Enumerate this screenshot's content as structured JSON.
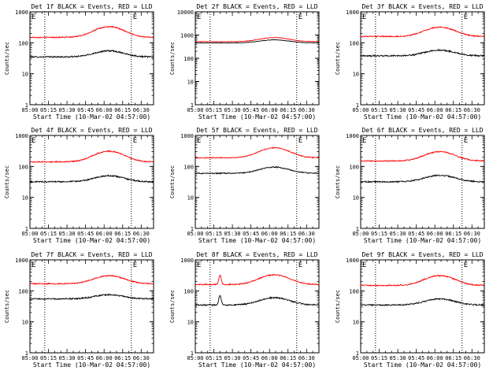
{
  "figure": {
    "background": "#ffffff",
    "axis_color": "#000000",
    "events_color": "#000000",
    "lld_color": "#ff0000"
  },
  "chart_data": [
    {
      "type": "line",
      "title": "Det 1f BLACK = Events, RED = LLD",
      "ylabel": "Counts/sec",
      "xlabel": "Start Time (10-Mar-02 04:57:00)",
      "yscale": "log",
      "ylim": [
        1,
        1000
      ],
      "y_tick_labels": [
        "1",
        "10",
        "100",
        "1000"
      ],
      "x_tick_labels": [
        "05:00",
        "05:15",
        "05:30",
        "05:45",
        "06:00",
        "06:15",
        "06:30"
      ],
      "xlim_minutes": [
        0,
        100
      ],
      "vlines_minutes": [
        12,
        82
      ],
      "markers": [
        {
          "text": "E",
          "x_minutes": 0
        },
        {
          "text": "E",
          "x_minutes": 82
        }
      ],
      "series": [
        {
          "name": "Events",
          "color": "#000000",
          "base": 35,
          "peak": 55,
          "peak_at_minutes": 64,
          "peak_width_minutes": 11,
          "noise": 0.05
        },
        {
          "name": "LLD",
          "color": "#ff0000",
          "base": 150,
          "peak": 330,
          "peak_at_minutes": 64,
          "peak_width_minutes": 11,
          "noise": 0.04
        }
      ]
    },
    {
      "type": "line",
      "title": "Det 2f BLACK = Events, RED = LLD",
      "ylabel": "Counts/sec",
      "xlabel": "Start Time (10-Mar-02 04:57:00)",
      "yscale": "log",
      "ylim": [
        1,
        10000
      ],
      "y_tick_labels": [
        "1",
        "10",
        "100",
        "1000",
        "10000"
      ],
      "x_tick_labels": [
        "05:00",
        "05:15",
        "05:30",
        "05:45",
        "06:00",
        "06:15",
        "06:30"
      ],
      "xlim_minutes": [
        0,
        100
      ],
      "vlines_minutes": [
        12,
        82
      ],
      "markers": [
        {
          "text": "E",
          "x_minutes": 0
        },
        {
          "text": "E",
          "x_minutes": 82
        }
      ],
      "series": [
        {
          "name": "Events",
          "color": "#000000",
          "base": 460,
          "peak": 620,
          "peak_at_minutes": 64,
          "peak_width_minutes": 11,
          "noise": 0.02
        },
        {
          "name": "LLD",
          "color": "#ff0000",
          "base": 520,
          "peak": 780,
          "peak_at_minutes": 64,
          "peak_width_minutes": 11,
          "noise": 0.02
        }
      ]
    },
    {
      "type": "line",
      "title": "Det 3f BLACK = Events, RED = LLD",
      "ylabel": "Counts/sec",
      "xlabel": "Start Time (10-Mar-02 04:57:00)",
      "yscale": "log",
      "ylim": [
        1,
        1000
      ],
      "y_tick_labels": [
        "1",
        "10",
        "100",
        "1000"
      ],
      "x_tick_labels": [
        "05:00",
        "05:15",
        "05:30",
        "05:45",
        "06:00",
        "06:15",
        "06:30"
      ],
      "xlim_minutes": [
        0,
        100
      ],
      "vlines_minutes": [
        12,
        82
      ],
      "markers": [
        {
          "text": "E",
          "x_minutes": 0
        },
        {
          "text": "E",
          "x_minutes": 82
        }
      ],
      "series": [
        {
          "name": "Events",
          "color": "#000000",
          "base": 38,
          "peak": 58,
          "peak_at_minutes": 64,
          "peak_width_minutes": 11,
          "noise": 0.05
        },
        {
          "name": "LLD",
          "color": "#ff0000",
          "base": 160,
          "peak": 320,
          "peak_at_minutes": 64,
          "peak_width_minutes": 11,
          "noise": 0.04
        }
      ]
    },
    {
      "type": "line",
      "title": "Det 4f BLACK = Events, RED = LLD",
      "ylabel": "Counts/sec",
      "xlabel": "Start Time (10-Mar-02 04:57:00)",
      "yscale": "log",
      "ylim": [
        1,
        1000
      ],
      "y_tick_labels": [
        "1",
        "10",
        "100",
        "1000"
      ],
      "x_tick_labels": [
        "05:00",
        "05:15",
        "05:30",
        "05:45",
        "06:00",
        "06:15",
        "06:30"
      ],
      "xlim_minutes": [
        0,
        100
      ],
      "vlines_minutes": [
        12,
        82
      ],
      "markers": [
        {
          "text": "E",
          "x_minutes": 0
        },
        {
          "text": "E",
          "x_minutes": 82
        }
      ],
      "series": [
        {
          "name": "Events",
          "color": "#000000",
          "base": 32,
          "peak": 50,
          "peak_at_minutes": 64,
          "peak_width_minutes": 11,
          "noise": 0.05
        },
        {
          "name": "LLD",
          "color": "#ff0000",
          "base": 140,
          "peak": 310,
          "peak_at_minutes": 64,
          "peak_width_minutes": 11,
          "noise": 0.04
        }
      ]
    },
    {
      "type": "line",
      "title": "Det 5f BLACK = Events, RED = LLD",
      "ylabel": "Counts/sec",
      "xlabel": "Start Time (10-Mar-02 04:57:00)",
      "yscale": "log",
      "ylim": [
        1,
        1000
      ],
      "y_tick_labels": [
        "1",
        "10",
        "100",
        "1000"
      ],
      "x_tick_labels": [
        "05:00",
        "05:15",
        "05:30",
        "05:45",
        "06:00",
        "06:15",
        "06:30"
      ],
      "xlim_minutes": [
        0,
        100
      ],
      "vlines_minutes": [
        12,
        82
      ],
      "markers": [
        {
          "text": "E",
          "x_minutes": 0
        },
        {
          "text": "E",
          "x_minutes": 82
        }
      ],
      "series": [
        {
          "name": "Events",
          "color": "#000000",
          "base": 60,
          "peak": 95,
          "peak_at_minutes": 64,
          "peak_width_minutes": 11,
          "noise": 0.04
        },
        {
          "name": "LLD",
          "color": "#ff0000",
          "base": 190,
          "peak": 400,
          "peak_at_minutes": 64,
          "peak_width_minutes": 11,
          "noise": 0.03
        }
      ]
    },
    {
      "type": "line",
      "title": "Det 6f BLACK = Events, RED = LLD",
      "ylabel": "Counts/sec",
      "xlabel": "Start Time (10-Mar-02 04:57:00)",
      "yscale": "log",
      "ylim": [
        1,
        1000
      ],
      "y_tick_labels": [
        "1",
        "10",
        "100",
        "1000"
      ],
      "x_tick_labels": [
        "05:00",
        "05:15",
        "05:30",
        "05:45",
        "06:00",
        "06:15",
        "06:30"
      ],
      "xlim_minutes": [
        0,
        100
      ],
      "vlines_minutes": [
        12,
        82
      ],
      "markers": [
        {
          "text": "E",
          "x_minutes": 0
        },
        {
          "text": "E",
          "x_minutes": 82
        }
      ],
      "series": [
        {
          "name": "Events",
          "color": "#000000",
          "base": 32,
          "peak": 52,
          "peak_at_minutes": 64,
          "peak_width_minutes": 11,
          "noise": 0.05
        },
        {
          "name": "LLD",
          "color": "#ff0000",
          "base": 150,
          "peak": 300,
          "peak_at_minutes": 64,
          "peak_width_minutes": 11,
          "noise": 0.04
        }
      ]
    },
    {
      "type": "line",
      "title": "Det 7f BLACK = Events, RED = LLD",
      "ylabel": "Counts/sec",
      "xlabel": "Start Time (10-Mar-02 04:57:00)",
      "yscale": "log",
      "ylim": [
        1,
        1000
      ],
      "y_tick_labels": [
        "1",
        "10",
        "100",
        "1000"
      ],
      "x_tick_labels": [
        "05:00",
        "05:15",
        "05:30",
        "05:45",
        "06:00",
        "06:15",
        "06:30"
      ],
      "xlim_minutes": [
        0,
        100
      ],
      "vlines_minutes": [
        12,
        82
      ],
      "markers": [
        {
          "text": "E",
          "x_minutes": 0
        },
        {
          "text": "E",
          "x_minutes": 82
        }
      ],
      "series": [
        {
          "name": "Events",
          "color": "#000000",
          "base": 55,
          "peak": 75,
          "peak_at_minutes": 64,
          "peak_width_minutes": 11,
          "noise": 0.05
        },
        {
          "name": "LLD",
          "color": "#ff0000",
          "base": 170,
          "peak": 310,
          "peak_at_minutes": 64,
          "peak_width_minutes": 11,
          "noise": 0.04
        }
      ]
    },
    {
      "type": "line",
      "title": "Det 8f BLACK = Events, RED = LLD",
      "ylabel": "Counts/sec",
      "xlabel": "Start Time (10-Mar-02 04:57:00)",
      "yscale": "log",
      "ylim": [
        1,
        1000
      ],
      "y_tick_labels": [
        "1",
        "10",
        "100",
        "1000"
      ],
      "x_tick_labels": [
        "05:00",
        "05:15",
        "05:30",
        "05:45",
        "06:00",
        "06:15",
        "06:30"
      ],
      "xlim_minutes": [
        0,
        100
      ],
      "vlines_minutes": [
        12,
        82
      ],
      "markers": [
        {
          "text": "E",
          "x_minutes": 0
        },
        {
          "text": "E",
          "x_minutes": 82
        }
      ],
      "series": [
        {
          "name": "Events",
          "color": "#000000",
          "base": 35,
          "peak": 60,
          "peak_at_minutes": 64,
          "peak_width_minutes": 11,
          "noise": 0.05,
          "spike_at_minutes": 20,
          "spike_value": 70
        },
        {
          "name": "LLD",
          "color": "#ff0000",
          "base": 160,
          "peak": 330,
          "peak_at_minutes": 64,
          "peak_width_minutes": 11,
          "noise": 0.04,
          "spike_at_minutes": 20,
          "spike_value": 320
        }
      ]
    },
    {
      "type": "line",
      "title": "Det 9f BLACK = Events, RED = LLD",
      "ylabel": "Counts/sec",
      "xlabel": "Start Time (10-Mar-02 04:57:00)",
      "yscale": "log",
      "ylim": [
        1,
        1000
      ],
      "y_tick_labels": [
        "1",
        "10",
        "100",
        "1000"
      ],
      "x_tick_labels": [
        "05:00",
        "05:15",
        "05:30",
        "05:45",
        "06:00",
        "06:15",
        "06:30"
      ],
      "xlim_minutes": [
        0,
        100
      ],
      "vlines_minutes": [
        12,
        82
      ],
      "markers": [
        {
          "text": "E",
          "x_minutes": 0
        },
        {
          "text": "E",
          "x_minutes": 82
        }
      ],
      "series": [
        {
          "name": "Events",
          "color": "#000000",
          "base": 35,
          "peak": 55,
          "peak_at_minutes": 64,
          "peak_width_minutes": 11,
          "noise": 0.05
        },
        {
          "name": "LLD",
          "color": "#ff0000",
          "base": 150,
          "peak": 310,
          "peak_at_minutes": 64,
          "peak_width_minutes": 11,
          "noise": 0.04
        }
      ]
    }
  ]
}
